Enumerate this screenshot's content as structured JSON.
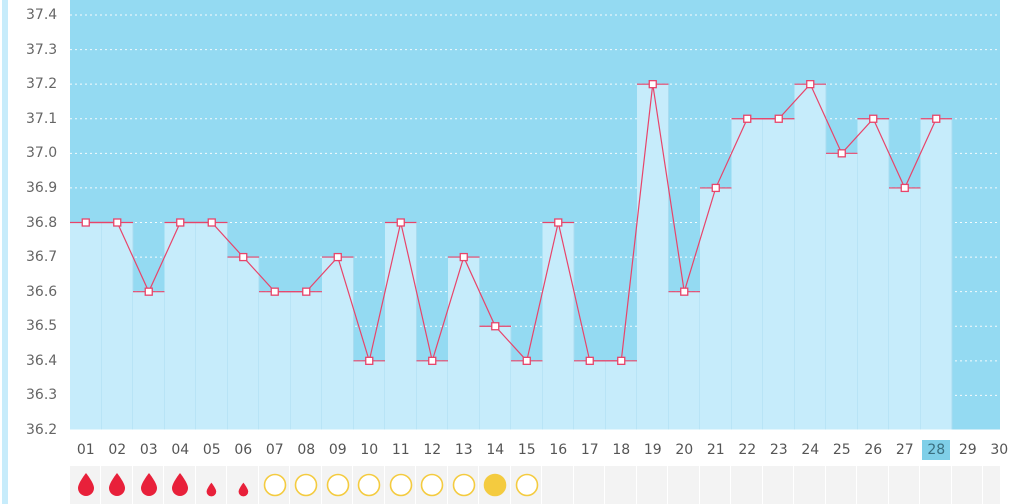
{
  "chart_data": {
    "type": "bar",
    "categories": [
      "01",
      "02",
      "03",
      "04",
      "05",
      "06",
      "07",
      "08",
      "09",
      "10",
      "11",
      "12",
      "13",
      "14",
      "15",
      "16",
      "17",
      "18",
      "19",
      "20",
      "21",
      "22",
      "23",
      "24",
      "25",
      "26",
      "27",
      "28",
      "29",
      "30"
    ],
    "values": [
      36.8,
      36.8,
      36.6,
      36.8,
      36.8,
      36.7,
      36.6,
      36.6,
      36.7,
      36.4,
      36.8,
      36.4,
      36.7,
      36.5,
      36.4,
      36.8,
      36.4,
      36.4,
      37.2,
      36.6,
      36.9,
      37.1,
      37.1,
      37.2,
      37.0,
      37.1,
      36.9,
      37.1,
      null,
      null
    ],
    "yticks": [
      "37.4",
      "37.3",
      "37.2",
      "37.1",
      "37.0",
      "36.9",
      "36.8",
      "36.7",
      "36.6",
      "36.5",
      "36.4",
      "36.3",
      "36.2"
    ],
    "ylim": [
      36.2,
      37.4
    ],
    "grid": true,
    "current_day": "28",
    "markers": [
      "heavy-drop",
      "heavy-drop",
      "heavy-drop",
      "heavy-drop",
      "light-drop",
      "light-drop",
      "circle",
      "circle",
      "circle",
      "circle",
      "circle",
      "circle",
      "circle",
      "filled-circle",
      "circle",
      "",
      "",
      "",
      "",
      "",
      "",
      "",
      "",
      "",
      "",
      "",
      "",
      "",
      "",
      ""
    ],
    "colors": {
      "plot_bg": "#94daf2",
      "bar_fill": "#c6ecfb",
      "bar_divider": "#a9dcf0",
      "line": "#e8446a",
      "drop": "#e8203a",
      "circle": "#f4cb3f",
      "current_day_bg": "#7fcfe8"
    }
  }
}
